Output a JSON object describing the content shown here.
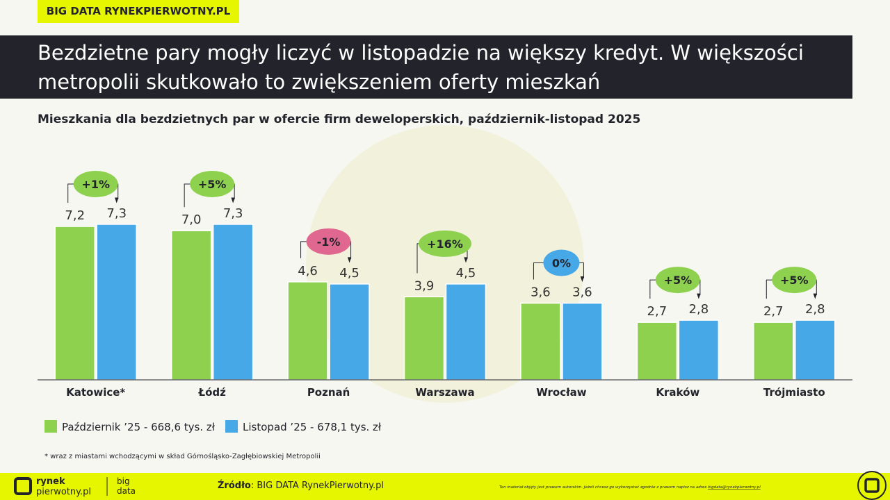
{
  "header": {
    "tag": "BIG DATA RYNEKPIERWOTNY.PL",
    "title": "Bezdzietne pary mogły liczyć w listopadzie na większy kredyt. W większości metropolii skutkowało to zwiększeniem oferty mieszkań"
  },
  "chart_data": {
    "type": "bar",
    "title": "Mieszkania dla bezdzietnych par w ofercie firm deweloperskich, październik-listopad 2025",
    "categories": [
      "Katowice*",
      "Łódź",
      "Poznań",
      "Warszawa",
      "Wrocław",
      "Kraków",
      "Trójmiasto"
    ],
    "series": [
      {
        "name": "Październik ’25 - 668,6 tys. zł",
        "color": "#8dd14f",
        "values": [
          7.2,
          7.0,
          4.6,
          3.9,
          3.6,
          2.7,
          2.7
        ],
        "value_labels": [
          "7,2",
          "7,0",
          "4,6",
          "3,9",
          "3,6",
          "2,7",
          "2,7"
        ]
      },
      {
        "name": "Listopad ’25 - 678,1 tys. zł",
        "color": "#47a8e8",
        "values": [
          7.3,
          7.3,
          4.5,
          4.5,
          3.6,
          2.8,
          2.8
        ],
        "value_labels": [
          "7,3",
          "7,3",
          "4,5",
          "4,5",
          "3,6",
          "2,8",
          "2,8"
        ]
      }
    ],
    "changes": [
      "+1%",
      "+5%",
      "-1%",
      "+16%",
      "0%",
      "+5%",
      "+5%"
    ],
    "change_colors": [
      "#8dd14f",
      "#8dd14f",
      "#e0678f",
      "#8dd14f",
      "#47a8e8",
      "#8dd14f",
      "#8dd14f"
    ],
    "legend": "bottom-left"
  },
  "footnote": "* wraz z miastami wchodzącymi w skład Górnośląsko-Zagłębiowskiej Metropolii",
  "footer": {
    "logo_top": "rynek",
    "logo_bottom": "pierwotny.pl",
    "logo_big": "big",
    "logo_data": "data",
    "source_label": "Źródło",
    "source": ": BIG DATA RynekPierwotny.pl",
    "copyright": "Ten materiał objęty jest prawem autorskim. Jeżeli chcesz go wykorzystać zgodnie z prawem napisz na adres",
    "email": "bigdata@rynekpierwotny.pl"
  }
}
